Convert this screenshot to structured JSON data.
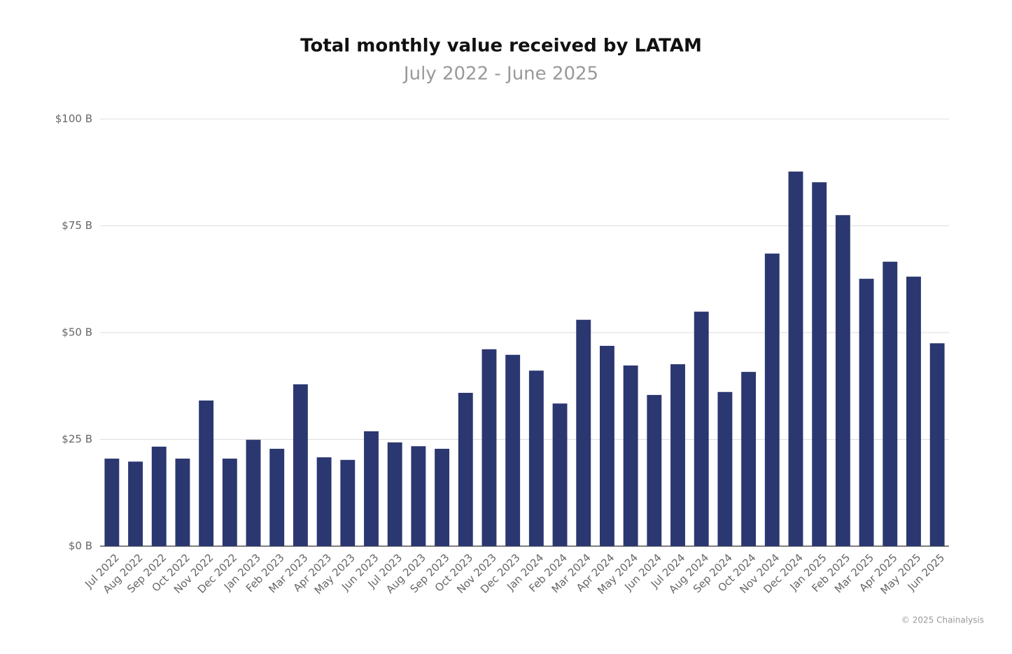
{
  "chart_data": {
    "type": "bar",
    "title": "Total monthly value received by LATAM",
    "subtitle": "July 2022 - June 2025",
    "source": "© 2025 Chainalysis",
    "categories": [
      "Jul 2022",
      "Aug 2022",
      "Sep 2022",
      "Oct 2022",
      "Nov 2022",
      "Dec 2022",
      "Jan 2023",
      "Feb 2023",
      "Mar 2023",
      "Apr 2023",
      "May 2023",
      "Jun 2023",
      "Jul 2023",
      "Aug 2023",
      "Sep 2023",
      "Oct 2023",
      "Nov 2023",
      "Dec 2023",
      "Jan 2024",
      "Feb 2024",
      "Mar 2024",
      "Apr 2024",
      "May 2024",
      "Jun 2024",
      "Jul 2024",
      "Aug 2024",
      "Sep 2024",
      "Oct 2024",
      "Nov 2024",
      "Dec 2024",
      "Jan 2025",
      "Feb 2025",
      "Mar 2025",
      "Apr 2025",
      "May 2025",
      "Jun 2025"
    ],
    "values": [
      20.5,
      19.8,
      23.3,
      20.5,
      34.1,
      20.5,
      24.9,
      22.8,
      37.9,
      20.8,
      20.2,
      26.9,
      24.3,
      23.4,
      22.8,
      35.9,
      46.1,
      44.8,
      41.1,
      33.4,
      53.0,
      46.9,
      42.3,
      35.4,
      42.6,
      54.9,
      36.1,
      40.8,
      68.5,
      87.7,
      85.2,
      77.5,
      62.6,
      66.6,
      63.1,
      47.5
    ],
    "color": "#2b3770",
    "ylim": [
      0,
      100
    ],
    "yticks": [
      {
        "value": 0,
        "label": "$0 B"
      },
      {
        "value": 25,
        "label": "$25 B"
      },
      {
        "value": 50,
        "label": "$50 B"
      },
      {
        "value": 75,
        "label": "$75 B"
      },
      {
        "value": 100,
        "label": "$100 B"
      }
    ],
    "grid": true
  }
}
